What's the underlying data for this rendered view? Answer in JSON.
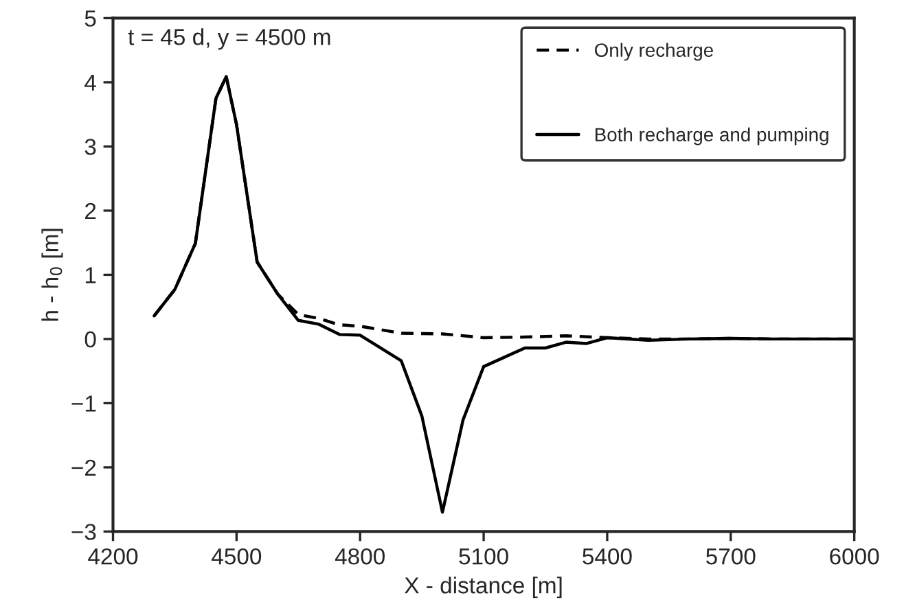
{
  "chart_data": {
    "type": "line",
    "xlabel": "X - distance [m]",
    "ylabel": "h - h$_{0}$ [m]",
    "annotations": [
      "t = 45 d, y = 4500 m"
    ],
    "xlim": [
      4200,
      6000
    ],
    "xticks": [
      4200,
      4500,
      4800,
      5100,
      5400,
      5700,
      6000
    ],
    "ylim": [
      -3,
      5
    ],
    "yticks": [
      {
        "value": -3,
        "label": "−3"
      },
      {
        "value": -2,
        "label": "−2"
      },
      {
        "value": -1,
        "label": "−1"
      },
      0,
      1,
      2,
      3,
      4,
      5
    ],
    "grid": false,
    "legend": "top right",
    "marker": "none",
    "series": [
      {
        "name": "Only recharge",
        "color": "#000000",
        "line_style": "dashed",
        "x": [
          4300,
          4350,
          4400,
          4450,
          4475,
          4500,
          4550,
          4600,
          4650,
          4700,
          4750,
          4800,
          4900,
          5000,
          5100,
          5200,
          5300,
          5400,
          5500,
          5600,
          5700,
          5800,
          5900,
          6000
        ],
        "values": [
          0.36,
          0.77,
          1.49,
          3.75,
          4.09,
          3.34,
          1.2,
          0.7,
          0.38,
          0.32,
          0.22,
          0.2,
          0.09,
          0.08,
          0.02,
          0.03,
          0.05,
          0.02,
          0,
          0,
          0.01,
          0,
          0,
          0
        ]
      },
      {
        "name": "Both recharge and pumping",
        "color": "#000000",
        "line_style": "solid",
        "x": [
          4300,
          4350,
          4400,
          4450,
          4475,
          4500,
          4550,
          4600,
          4650,
          4700,
          4750,
          4800,
          4900,
          4950,
          5000,
          5050,
          5100,
          5200,
          5250,
          5300,
          5350,
          5400,
          5500,
          5600,
          5700,
          5800,
          5900,
          6000
        ],
        "values": [
          0.36,
          0.77,
          1.49,
          3.75,
          4.09,
          3.34,
          1.2,
          0.7,
          0.29,
          0.23,
          0.07,
          0.06,
          -0.34,
          -1.2,
          -2.7,
          -1.26,
          -0.43,
          -0.14,
          -0.14,
          -0.05,
          -0.07,
          0.02,
          -0.02,
          0,
          0.01,
          0,
          0,
          0
        ]
      }
    ]
  }
}
